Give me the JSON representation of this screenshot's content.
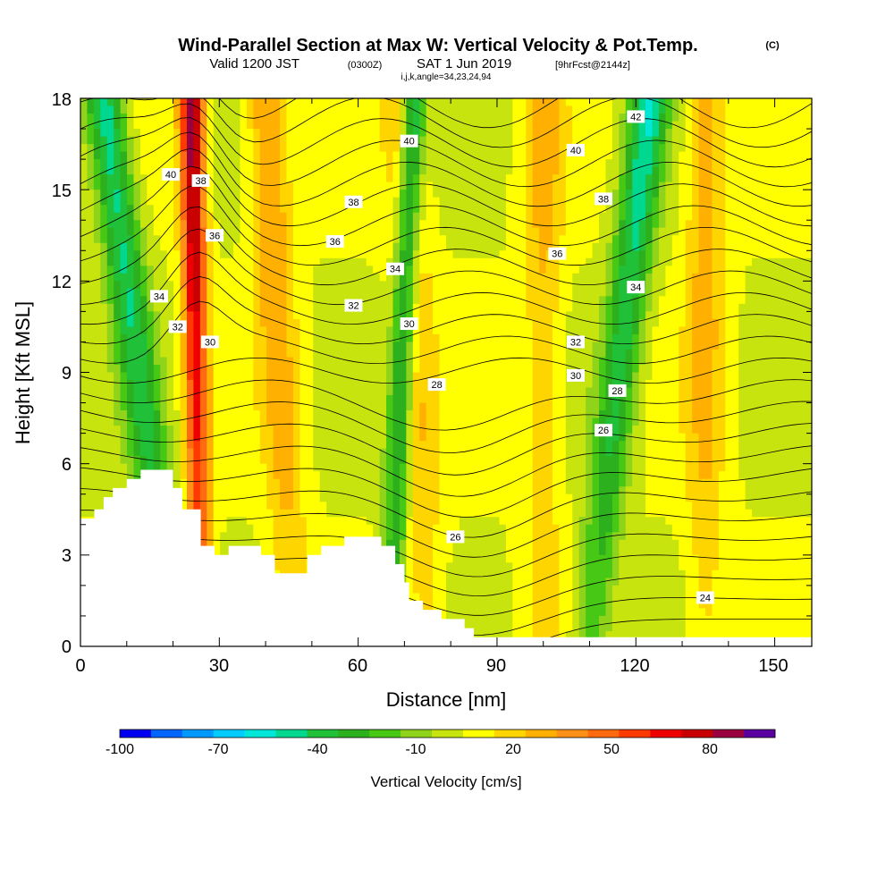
{
  "chart_data": {
    "type": "heatmap",
    "title": "Wind-Parallel Section at Max W: Vertical Velocity & Pot.Temp.",
    "title_mark": "(C)",
    "subtitle": {
      "valid": "Valid 1200 JST",
      "utc": "(0300Z)",
      "date": "SAT 1 Jun 2019",
      "fcst": "[9hrFcst@2144z]"
    },
    "indices_line": "i,j,k,angle=34,23,24,94",
    "xlabel": "Distance [nm]",
    "ylabel": "Height [Kft MSL]",
    "xlim": [
      0,
      158
    ],
    "ylim": [
      0,
      18
    ],
    "x_ticks": [
      "0",
      "30",
      "60",
      "90",
      "120",
      "150"
    ],
    "x_tick_values": [
      0,
      30,
      60,
      90,
      120,
      150
    ],
    "y_ticks": [
      "0",
      "3",
      "6",
      "9",
      "12",
      "15",
      "18"
    ],
    "y_tick_values": [
      0,
      3,
      6,
      9,
      12,
      15,
      18
    ],
    "terrain_profile": [
      [
        0,
        4.2
      ],
      [
        3,
        4.5
      ],
      [
        5,
        4.9
      ],
      [
        7,
        5.2
      ],
      [
        10,
        5.5
      ],
      [
        13,
        5.8
      ],
      [
        20,
        5.2
      ],
      [
        22,
        4.5
      ],
      [
        26,
        3.3
      ],
      [
        29,
        3.0
      ],
      [
        32,
        3.3
      ],
      [
        39,
        3.0
      ],
      [
        42,
        2.4
      ],
      [
        49,
        3.0
      ],
      [
        52,
        3.3
      ],
      [
        57,
        3.6
      ],
      [
        65,
        3.3
      ],
      [
        68,
        2.7
      ],
      [
        70,
        2.1
      ],
      [
        71,
        1.5
      ],
      [
        74,
        1.2
      ],
      [
        78,
        0.9
      ],
      [
        83,
        0.6
      ],
      [
        85,
        0.3
      ],
      [
        158,
        0.3
      ]
    ],
    "updraft_bands": [
      {
        "x_top": 24,
        "x_bottom": 26,
        "max_cm_s": 90
      },
      {
        "x_top": 40,
        "x_bottom": 46,
        "max_cm_s": 35
      },
      {
        "x_top": 70,
        "x_bottom": 75,
        "max_cm_s": 30
      },
      {
        "x_top": 100,
        "x_bottom": 100,
        "max_cm_s": 25
      },
      {
        "x_top": 135,
        "x_bottom": 135,
        "max_cm_s": 30
      }
    ],
    "downdraft_bands": [
      {
        "x_top": 5,
        "x_bottom": 20,
        "min_cm_s": -60
      },
      {
        "x_top": 72,
        "x_bottom": 67,
        "min_cm_s": -70
      },
      {
        "x_top": 123,
        "x_bottom": 110,
        "min_cm_s": -60
      }
    ],
    "isentrope_labels": [
      {
        "text": "40",
        "x": 19.5,
        "y": 15.5
      },
      {
        "text": "38",
        "x": 26,
        "y": 15.3
      },
      {
        "text": "36",
        "x": 29,
        "y": 13.5
      },
      {
        "text": "34",
        "x": 17,
        "y": 11.5
      },
      {
        "text": "32",
        "x": 21,
        "y": 10.5
      },
      {
        "text": "30",
        "x": 28,
        "y": 10.0
      },
      {
        "text": "38",
        "x": 59,
        "y": 14.6
      },
      {
        "text": "36",
        "x": 55,
        "y": 13.3
      },
      {
        "text": "34",
        "x": 68,
        "y": 12.4
      },
      {
        "text": "32",
        "x": 59,
        "y": 11.2
      },
      {
        "text": "30",
        "x": 71,
        "y": 10.6
      },
      {
        "text": "40",
        "x": 71,
        "y": 16.6
      },
      {
        "text": "28",
        "x": 77,
        "y": 8.6
      },
      {
        "text": "26",
        "x": 81,
        "y": 3.6
      },
      {
        "text": "42",
        "x": 120,
        "y": 17.4
      },
      {
        "text": "40",
        "x": 107,
        "y": 16.3
      },
      {
        "text": "38",
        "x": 113,
        "y": 14.7
      },
      {
        "text": "36",
        "x": 103,
        "y": 12.9
      },
      {
        "text": "34",
        "x": 120,
        "y": 11.8
      },
      {
        "text": "32",
        "x": 107,
        "y": 10.0
      },
      {
        "text": "30",
        "x": 107,
        "y": 8.9
      },
      {
        "text": "28",
        "x": 116,
        "y": 8.4
      },
      {
        "text": "26",
        "x": 113,
        "y": 7.1
      },
      {
        "text": "24",
        "x": 135,
        "y": 1.6
      }
    ],
    "colorbar": {
      "label": "Vertical Velocity [cm/s]",
      "tick_labels": [
        "-100",
        "-70",
        "-40",
        "-10",
        "20",
        "50",
        "80"
      ],
      "colors": [
        "#0000f0",
        "#0066ff",
        "#0099ff",
        "#00ccff",
        "#00e6d8",
        "#00d890",
        "#20c038",
        "#2db01e",
        "#46c814",
        "#8fd41a",
        "#c8e40e",
        "#ffff00",
        "#ffd500",
        "#ffb000",
        "#ff9018",
        "#ff6a10",
        "#ff3a00",
        "#ee0000",
        "#c80000",
        "#9a0040",
        "#5a00a0"
      ]
    }
  }
}
